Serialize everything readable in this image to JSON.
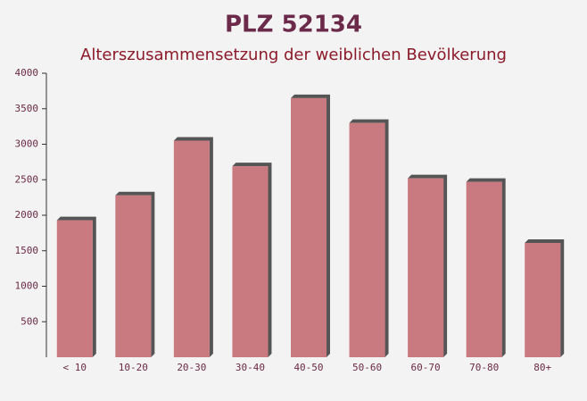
{
  "chart_data": {
    "type": "bar",
    "title": "PLZ 52134",
    "subtitle": "Alterszusammensetzung der weiblichen Bevölkerung",
    "categories": [
      "< 10",
      "10-20",
      "20-30",
      "30-40",
      "40-50",
      "50-60",
      "60-70",
      "70-80",
      "80+"
    ],
    "values": [
      1930,
      2280,
      3050,
      2690,
      3650,
      3300,
      2520,
      2470,
      1610
    ],
    "color": "#c46b73",
    "ylim": [
      0,
      4000
    ],
    "yticks": [
      500,
      1000,
      1500,
      2000,
      2500,
      3000,
      3500,
      4000
    ],
    "grid": false
  }
}
